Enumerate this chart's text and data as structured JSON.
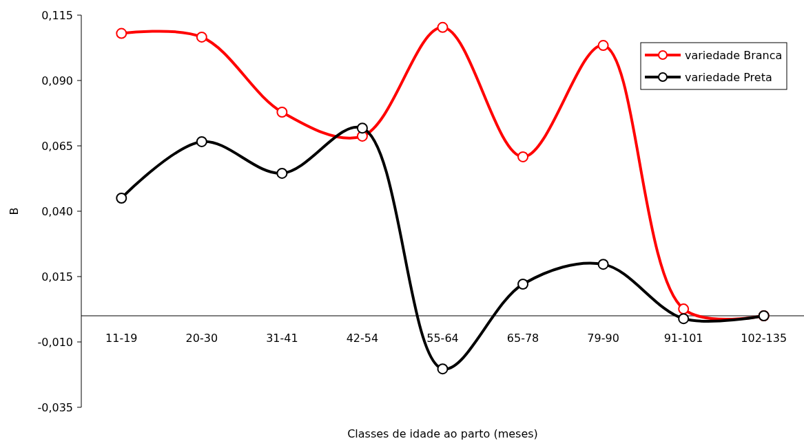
{
  "chart_data": {
    "type": "line",
    "xlabel": "Classes de idade ao parto (meses)",
    "ylabel": "B",
    "categories": [
      "11-19",
      "20-30",
      "31-41",
      "42-54",
      "55-64",
      "65-78",
      "79-90",
      "91-101",
      "102-135"
    ],
    "series": [
      {
        "name": "variedade Branca",
        "color": "#ff0000",
        "values": [
          0.108,
          0.1066,
          0.0779,
          0.0687,
          0.1103,
          0.0608,
          0.1034,
          0.0026,
          0.0
        ]
      },
      {
        "name": "variedade Preta",
        "color": "#000000",
        "values": [
          0.045,
          0.0666,
          0.0545,
          0.0718,
          -0.0203,
          0.0121,
          0.0197,
          -0.0011,
          0.0
        ]
      }
    ],
    "ylim": [
      -0.035,
      0.115
    ],
    "yticks": [
      {
        "value": -0.035,
        "label": "-0,035"
      },
      {
        "value": -0.01,
        "label": "-0,010"
      },
      {
        "value": 0.015,
        "label": "0,015"
      },
      {
        "value": 0.04,
        "label": "0,040"
      },
      {
        "value": 0.065,
        "label": "0,065"
      },
      {
        "value": 0.09,
        "label": "0,090"
      },
      {
        "value": 0.115,
        "label": "0,115"
      }
    ],
    "grid": false,
    "legend": "top right",
    "marker": "circle",
    "line_style": "solid"
  }
}
